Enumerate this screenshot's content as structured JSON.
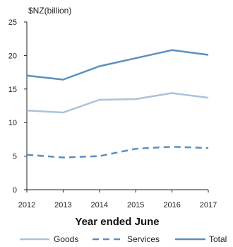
{
  "chart_data": {
    "type": "line",
    "ylabel": "$NZ(billion)",
    "xlabel": "Year ended June",
    "x": [
      "2012",
      "2013",
      "2014",
      "2015",
      "2016",
      "2017"
    ],
    "ylim": [
      0,
      25
    ],
    "yticks": [
      "0",
      "5",
      "10",
      "15",
      "20",
      "25"
    ],
    "grid": false,
    "legend_position": "bottom",
    "series": [
      {
        "name": "Goods",
        "values": [
          11.8,
          11.5,
          13.4,
          13.5,
          14.4,
          13.7
        ],
        "color": "#a9c3dc",
        "style": "solid"
      },
      {
        "name": "Services",
        "values": [
          5.2,
          4.8,
          5.0,
          6.1,
          6.4,
          6.2
        ],
        "color": "#5b8fc0",
        "style": "dashed"
      },
      {
        "name": "Total",
        "values": [
          17.0,
          16.4,
          18.4,
          19.6,
          20.8,
          20.1
        ],
        "color": "#5b8fc0",
        "style": "solid"
      }
    ]
  }
}
